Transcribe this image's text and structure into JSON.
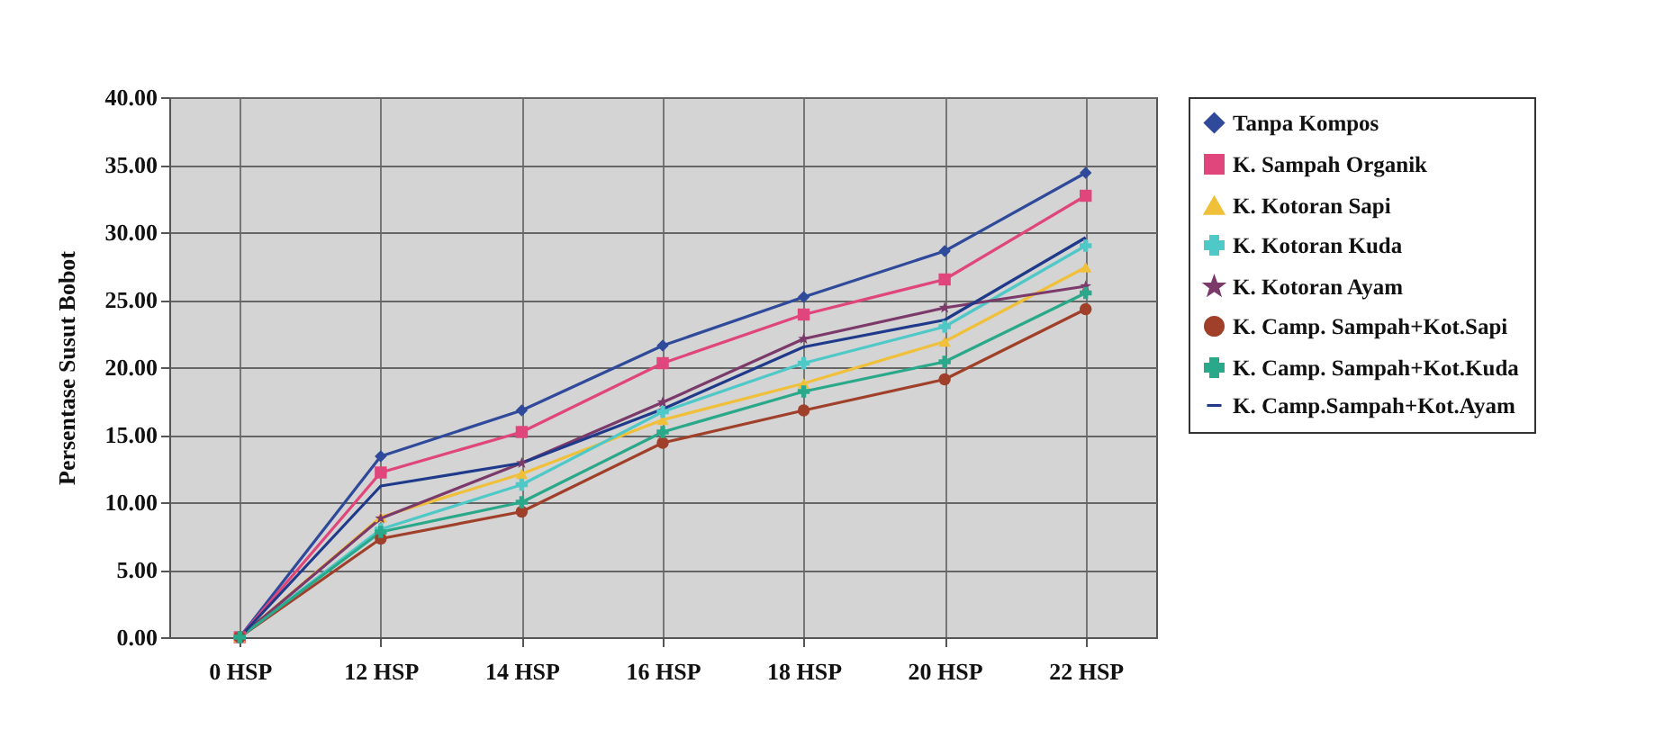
{
  "chart_data": {
    "type": "line",
    "ylabel": "Persentase Susut Bobot",
    "categories": [
      "0 HSP",
      "12 HSP",
      "14 HSP",
      "16 HSP",
      "18 HSP",
      "20 HSP",
      "22 HSP"
    ],
    "series": [
      {
        "name": "Tanpa Kompos",
        "color": "#2f4a9a",
        "marker": "diamond",
        "values": [
          0,
          13.4,
          16.8,
          21.6,
          25.2,
          28.6,
          34.4
        ]
      },
      {
        "name": "K. Sampah Organik",
        "color": "#e0457b",
        "marker": "square",
        "values": [
          0,
          12.2,
          15.2,
          20.3,
          23.9,
          26.5,
          32.7
        ]
      },
      {
        "name": "K. Kotoran Sapi",
        "color": "#f0c03a",
        "marker": "triangle",
        "values": [
          0,
          8.9,
          12.1,
          16.1,
          18.8,
          21.9,
          27.4
        ]
      },
      {
        "name": "K. Kotoran Kuda",
        "color": "#4fc8c8",
        "marker": "cross",
        "values": [
          0,
          8.0,
          11.3,
          16.7,
          20.3,
          23.0,
          29.0
        ]
      },
      {
        "name": "K. Kotoran Ayam",
        "color": "#7b3a6a",
        "marker": "star",
        "values": [
          0,
          8.8,
          12.9,
          17.4,
          22.1,
          24.4,
          26.0
        ]
      },
      {
        "name": "K. Camp. Sampah+Kot.Sapi",
        "color": "#a0402a",
        "marker": "circle",
        "values": [
          0,
          7.3,
          9.3,
          14.4,
          16.8,
          19.1,
          24.3
        ]
      },
      {
        "name": "K. Camp. Sampah+Kot.Kuda",
        "color": "#2aa88a",
        "marker": "cross",
        "values": [
          0,
          7.8,
          10.0,
          15.2,
          18.2,
          20.4,
          25.5
        ]
      },
      {
        "name": "K. Camp.Sampah+Kot.Ayam",
        "color": "#1f3a8a",
        "marker": "none",
        "values": [
          0,
          11.2,
          12.9,
          16.9,
          21.5,
          23.5,
          29.6
        ]
      }
    ],
    "ylim": [
      0,
      40
    ],
    "yticks": [
      {
        "value": 0,
        "label": "0.00"
      },
      {
        "value": 5,
        "label": "5.00"
      },
      {
        "value": 10,
        "label": "10.00"
      },
      {
        "value": 15,
        "label": "15.00"
      },
      {
        "value": 20,
        "label": "20.00"
      },
      {
        "value": 25,
        "label": "25.00"
      },
      {
        "value": 30,
        "label": "30.00"
      },
      {
        "value": 35,
        "label": "35.00"
      },
      {
        "value": 40,
        "label": "40.00"
      }
    ],
    "grid": true,
    "legend": "right"
  }
}
